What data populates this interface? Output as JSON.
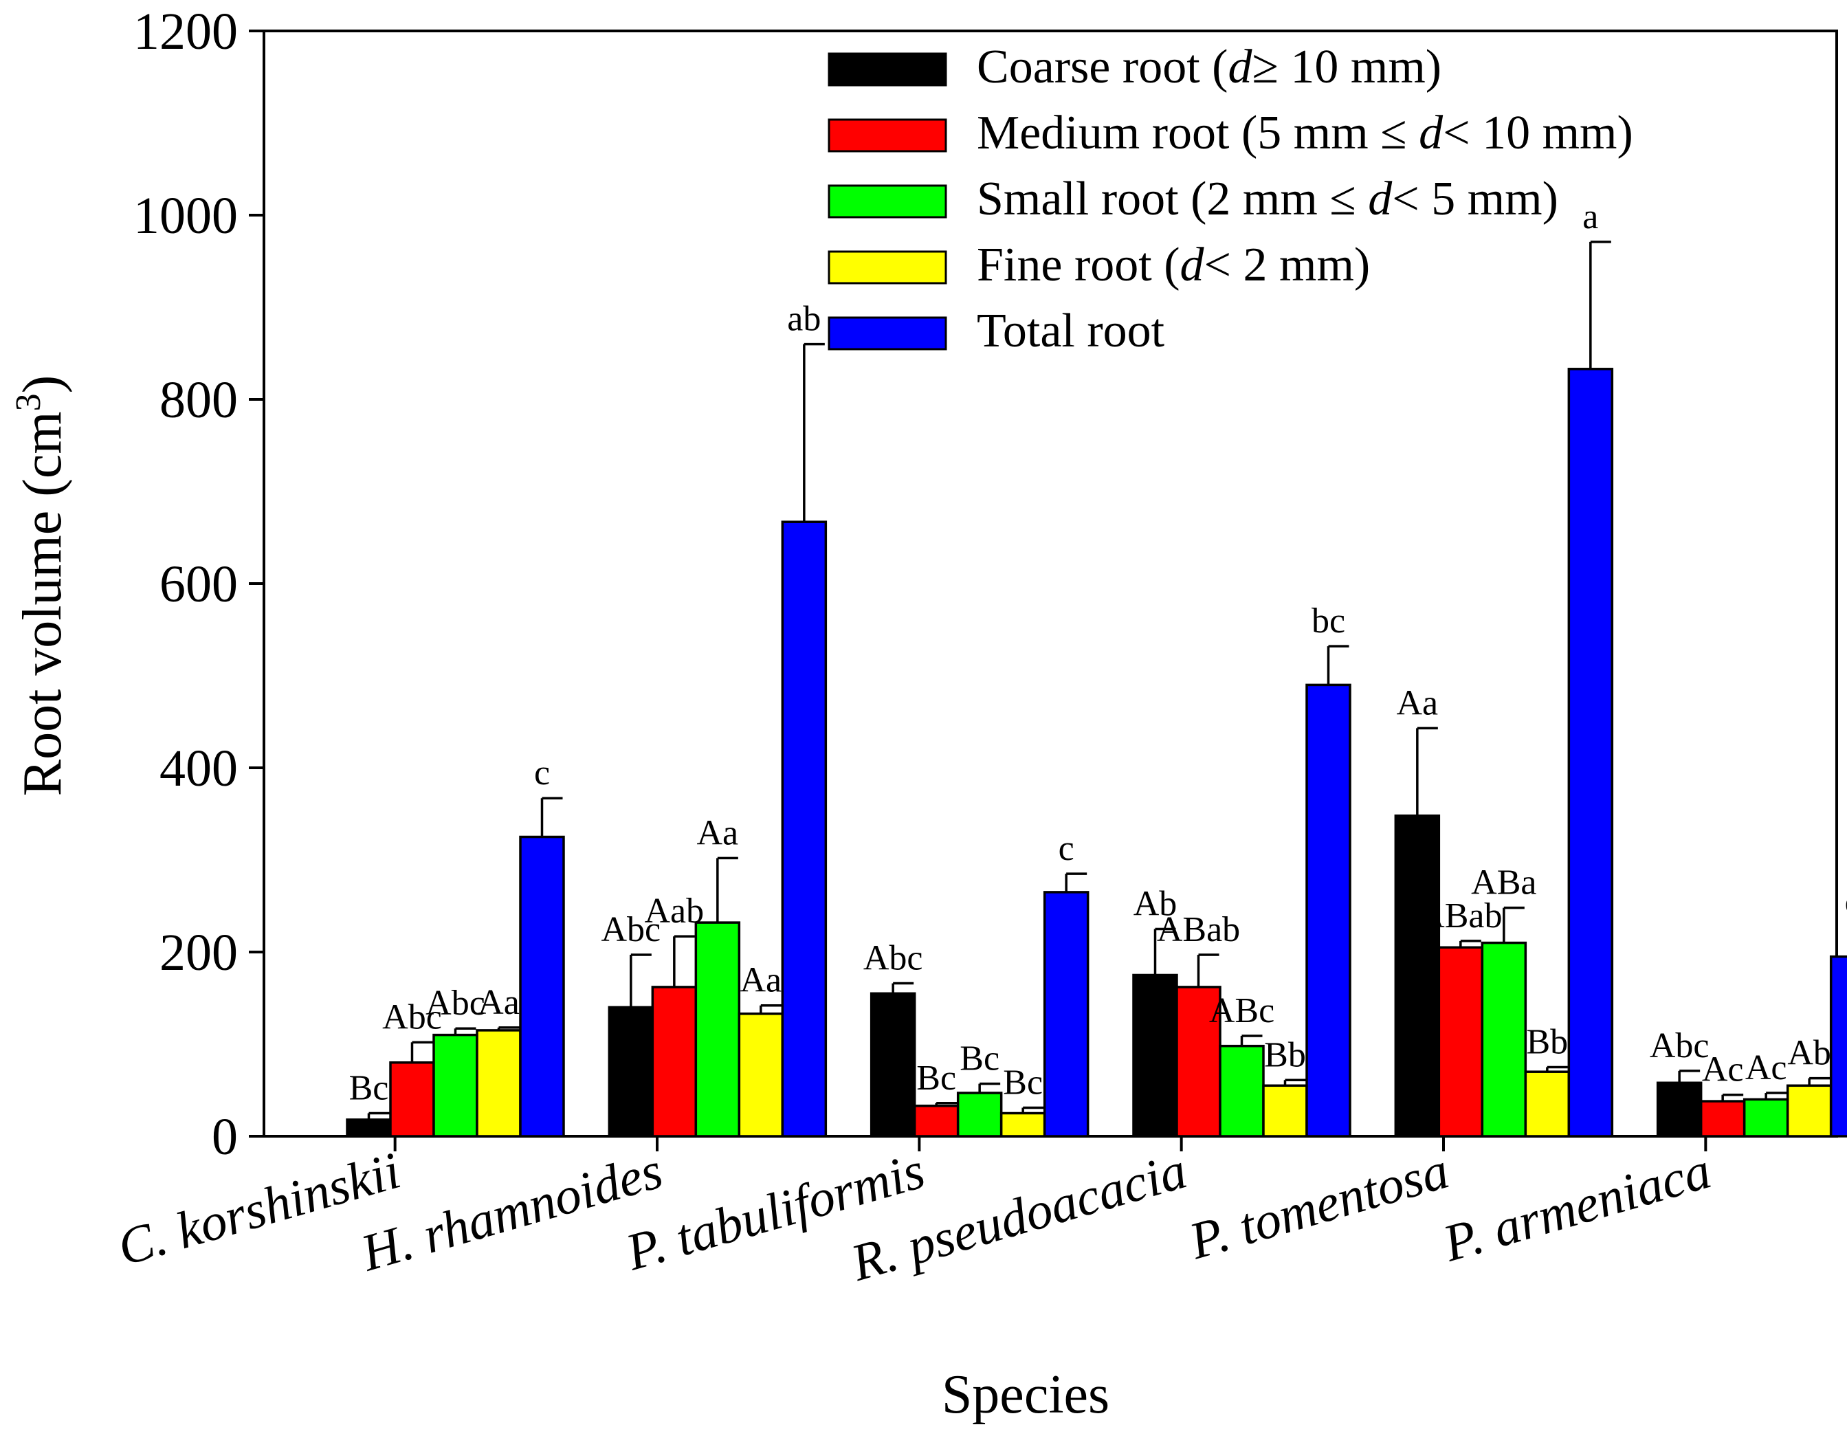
{
  "chart_data": {
    "type": "bar",
    "title": "",
    "xlabel": "Species",
    "ylabel": "Root volume (cm",
    "ylabel_sup": "3",
    "ylabel_end": ")",
    "ylim": [
      0,
      1200
    ],
    "yticks": [
      "0",
      "200",
      "400",
      "600",
      "800",
      "1000",
      "1200"
    ],
    "legend_position": "top-right",
    "categories": [
      "C. korshinskii",
      "H. rhamnoides",
      "P. tabuliformis",
      "R. pseudoacacia",
      "P. tomentosa",
      "P. armeniaca"
    ],
    "series": [
      {
        "name": "Coarse root",
        "legend": {
          "pre": "Coarse root (",
          "d": "d",
          "post": "≥  10 mm)"
        },
        "color": "#000000",
        "values": [
          18,
          140,
          155,
          175,
          348,
          58
        ],
        "errors": [
          7,
          57,
          11,
          50,
          95,
          13
        ],
        "labels": [
          "Bc",
          "Abc",
          "Abc",
          "Ab",
          "Aa",
          "Abc"
        ]
      },
      {
        "name": "Medium root",
        "legend": {
          "pre": "Medium root (5 mm ≤  ",
          "d": "d",
          "post": "< 10 mm)"
        },
        "color": "#ff0000",
        "values": [
          80,
          162,
          33,
          162,
          205,
          38
        ],
        "errors": [
          22,
          55,
          3,
          35,
          7,
          7
        ],
        "labels": [
          "Abc",
          "Aab",
          "Bc",
          "ABab",
          "ABab",
          "Ac"
        ]
      },
      {
        "name": "Small root",
        "legend": {
          "pre": "Small root (2 mm ≤  ",
          "d": "d",
          "post": "< 5 mm)"
        },
        "color": "#00ff00",
        "values": [
          110,
          232,
          47,
          98,
          210,
          40
        ],
        "errors": [
          7,
          70,
          10,
          11,
          38,
          7
        ],
        "labels": [
          "Abc",
          "Aa",
          "Bc",
          "ABc",
          "ABa",
          "Ac"
        ]
      },
      {
        "name": "Fine root",
        "legend": {
          "pre": "Fine root (",
          "d": "d",
          "post": "< 2 mm)"
        },
        "color": "#ffff00",
        "values": [
          115,
          133,
          25,
          55,
          70,
          55
        ],
        "errors": [
          3,
          9,
          6,
          6,
          5,
          8
        ],
        "labels": [
          "Aa",
          "Aa",
          "Bc",
          "Bb",
          "Bb",
          "Ab"
        ]
      },
      {
        "name": "Total root",
        "legend": {
          "pre": "Total root",
          "d": "",
          "post": ""
        },
        "color": "#0000ff",
        "values": [
          325,
          667,
          265,
          490,
          833,
          195
        ],
        "errors": [
          42,
          193,
          20,
          42,
          138,
          32
        ],
        "labels": [
          "c",
          "ab",
          "c",
          "bc",
          "a",
          "c"
        ]
      }
    ]
  }
}
